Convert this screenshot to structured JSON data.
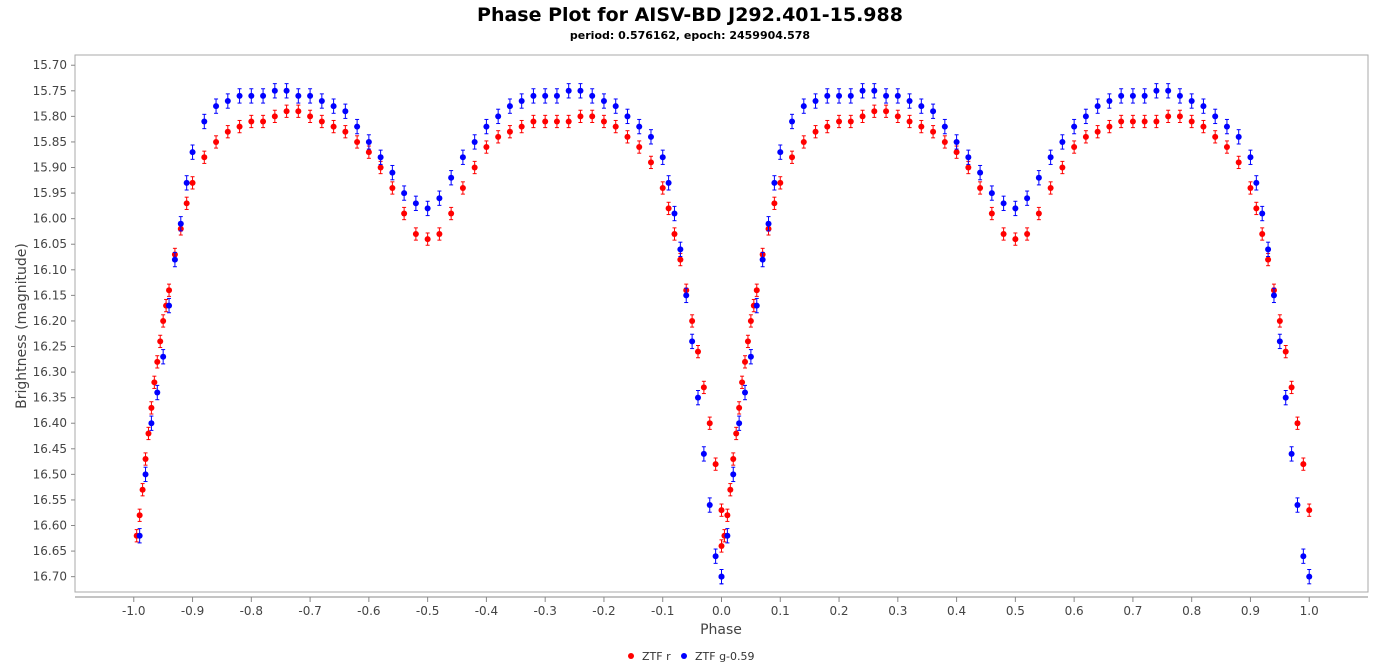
{
  "chart_data": {
    "type": "scatter",
    "title": "Phase Plot for AISV-BD J292.401-15.988",
    "subtitle": "period: 0.576162, epoch: 2459904.578",
    "xlabel": "Phase",
    "ylabel": "Brightness (magnitude)",
    "xlim": [
      -1.1,
      1.1
    ],
    "ylim": [
      16.73,
      15.68
    ],
    "y_inverted": true,
    "grid": false,
    "legend": "bottom-center",
    "xticks": [
      "-1.0",
      "-0.9",
      "-0.8",
      "-0.7",
      "-0.6",
      "-0.5",
      "-0.4",
      "-0.3",
      "-0.2",
      "-0.1",
      "0.0",
      "0.1",
      "0.2",
      "0.3",
      "0.4",
      "0.5",
      "0.6",
      "0.7",
      "0.8",
      "0.9",
      "1.0"
    ],
    "yticks": [
      "15.70",
      "15.75",
      "15.80",
      "15.85",
      "15.90",
      "15.95",
      "16.00",
      "16.05",
      "16.10",
      "16.15",
      "16.20",
      "16.25",
      "16.30",
      "16.35",
      "16.40",
      "16.45",
      "16.50",
      "16.55",
      "16.60",
      "16.65",
      "16.70"
    ],
    "series": [
      {
        "name": "ZTF r",
        "color": "#ff0000",
        "errorbar": 0.012,
        "x": [
          0.0,
          0.005,
          0.01,
          0.015,
          0.02,
          0.025,
          0.03,
          0.035,
          0.04,
          0.045,
          0.05,
          0.055,
          0.06,
          0.07,
          0.08,
          0.09,
          0.1,
          0.12,
          0.14,
          0.16,
          0.18,
          0.2,
          0.22,
          0.24,
          0.26,
          0.28,
          0.3,
          0.32,
          0.34,
          0.36,
          0.38,
          0.4,
          0.42,
          0.44,
          0.46,
          0.48,
          0.5,
          0.52,
          0.54,
          0.56,
          0.58,
          0.6,
          0.62,
          0.64,
          0.66,
          0.68,
          0.7,
          0.72,
          0.74,
          0.76,
          0.78,
          0.8,
          0.82,
          0.84,
          0.86,
          0.88,
          0.9,
          0.91,
          0.92,
          0.93,
          0.94,
          0.95,
          0.96,
          0.97,
          0.98,
          0.99,
          1.0
        ],
        "y": [
          16.64,
          16.62,
          16.58,
          16.53,
          16.47,
          16.42,
          16.37,
          16.32,
          16.28,
          16.24,
          16.2,
          16.17,
          16.14,
          16.07,
          16.02,
          15.97,
          15.93,
          15.88,
          15.85,
          15.83,
          15.82,
          15.81,
          15.81,
          15.8,
          15.79,
          15.79,
          15.8,
          15.81,
          15.82,
          15.83,
          15.85,
          15.87,
          15.9,
          15.94,
          15.99,
          16.03,
          16.04,
          16.03,
          15.99,
          15.94,
          15.9,
          15.86,
          15.84,
          15.83,
          15.82,
          15.81,
          15.81,
          15.81,
          15.81,
          15.8,
          15.8,
          15.81,
          15.82,
          15.84,
          15.86,
          15.89,
          15.94,
          15.98,
          16.03,
          16.08,
          16.14,
          16.2,
          16.26,
          16.33,
          16.4,
          16.48,
          16.57
        ]
      },
      {
        "name": "ZTF g-0.59",
        "color": "#0000ff",
        "errorbar": 0.014,
        "x": [
          0.0,
          0.01,
          0.02,
          0.03,
          0.04,
          0.05,
          0.06,
          0.07,
          0.08,
          0.09,
          0.1,
          0.12,
          0.14,
          0.16,
          0.18,
          0.2,
          0.22,
          0.24,
          0.26,
          0.28,
          0.3,
          0.32,
          0.34,
          0.36,
          0.38,
          0.4,
          0.42,
          0.44,
          0.46,
          0.48,
          0.5,
          0.52,
          0.54,
          0.56,
          0.58,
          0.6,
          0.62,
          0.64,
          0.66,
          0.68,
          0.7,
          0.72,
          0.74,
          0.76,
          0.78,
          0.8,
          0.82,
          0.84,
          0.86,
          0.88,
          0.9,
          0.91,
          0.92,
          0.93,
          0.94,
          0.95,
          0.96,
          0.97,
          0.98,
          0.99,
          1.0
        ],
        "y": [
          16.7,
          16.62,
          16.5,
          16.4,
          16.34,
          16.27,
          16.17,
          16.08,
          16.01,
          15.93,
          15.87,
          15.81,
          15.78,
          15.77,
          15.76,
          15.76,
          15.76,
          15.75,
          15.75,
          15.76,
          15.76,
          15.77,
          15.78,
          15.79,
          15.82,
          15.85,
          15.88,
          15.91,
          15.95,
          15.97,
          15.98,
          15.96,
          15.92,
          15.88,
          15.85,
          15.82,
          15.8,
          15.78,
          15.77,
          15.76,
          15.76,
          15.76,
          15.75,
          15.75,
          15.76,
          15.77,
          15.78,
          15.8,
          15.82,
          15.84,
          15.88,
          15.93,
          15.99,
          16.06,
          16.15,
          16.24,
          16.35,
          16.46,
          16.56,
          16.66,
          16.7
        ]
      }
    ]
  }
}
